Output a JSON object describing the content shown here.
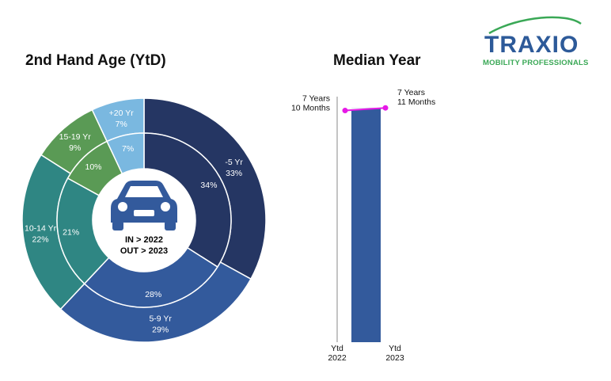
{
  "logo": {
    "wordmark": "TRAXIO",
    "tagline": "MOBILITY PROFESSIONALS",
    "colors": {
      "wordmark": "#2d5a99",
      "tagline": "#3aa856"
    }
  },
  "center_label": {
    "icon": "car-icon",
    "line1": "IN > 2022",
    "line2": "OUT > 2023"
  },
  "chart_data": [
    {
      "type": "pie",
      "subtype": "nested-donut",
      "title": "2nd Hand Age (YtD)",
      "categories": [
        "-5 Yr",
        "5-9 Yr",
        "10-14 Yr",
        "15-19 Yr",
        "+20 Yr"
      ],
      "colors": [
        "#253663",
        "#335a9c",
        "#2f8683",
        "#5a9a55",
        "#7ab8e0"
      ],
      "series": [
        {
          "ring": "inner",
          "year": "2022",
          "values": [
            34,
            28,
            21,
            10,
            7
          ],
          "labels": [
            "34%",
            "28%",
            "21%",
            "10%",
            "7%"
          ]
        },
        {
          "ring": "outer",
          "year": "2023",
          "values": [
            33,
            29,
            22,
            9,
            7
          ],
          "labels": [
            "33%",
            "29%",
            "22%",
            "9%",
            "7%"
          ]
        }
      ]
    },
    {
      "type": "bar",
      "title": "Median Year",
      "categories": [
        "Ytd 2022",
        "Ytd 2023"
      ],
      "category_lines": [
        [
          "Ytd",
          "2022"
        ],
        [
          "Ytd",
          "2023"
        ]
      ],
      "values": [
        7.83,
        7.92
      ],
      "value_labels": [
        [
          "7 Years",
          "10 Months"
        ],
        [
          "7 Years",
          "11 Months"
        ]
      ],
      "ylim": [
        0,
        8.3
      ],
      "bar_color": "#335a9c",
      "trend_line_color": "#e619e6",
      "grid": false
    }
  ]
}
